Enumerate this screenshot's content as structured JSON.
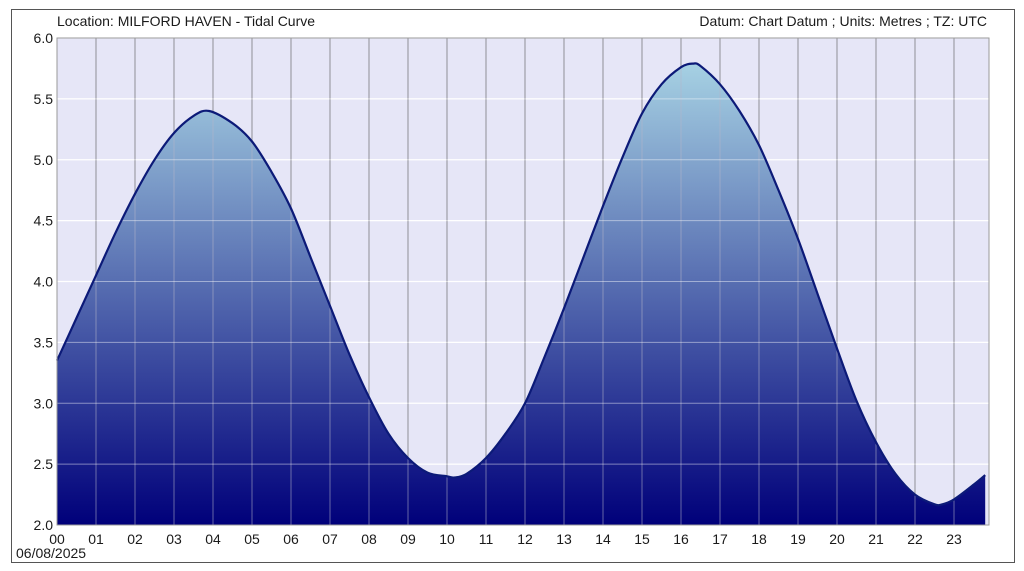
{
  "header": {
    "location": "Location: MILFORD HAVEN - Tidal Curve",
    "datum_info": "Datum: Chart Datum ; Units: Metres ; TZ: UTC"
  },
  "date": "06/08/2025",
  "colors": {
    "background": "#e6e6f7",
    "line": "#0c1a78",
    "fill_top": "#a6d1e3",
    "fill_bottom": "#00007a",
    "grid_vertical": "#8c8c8c",
    "grid_horizontal": "#ffffff"
  },
  "chart_data": {
    "type": "area",
    "title": "Location: MILFORD HAVEN - Tidal Curve",
    "xlabel": "",
    "ylabel": "",
    "xlim": [
      0,
      23.8
    ],
    "ylim": [
      2.0,
      6.0
    ],
    "grid": true,
    "x_ticks": [
      "00",
      "01",
      "02",
      "03",
      "04",
      "05",
      "06",
      "07",
      "08",
      "09",
      "10",
      "11",
      "12",
      "13",
      "14",
      "15",
      "16",
      "17",
      "18",
      "19",
      "20",
      "21",
      "22",
      "23"
    ],
    "y_ticks": [
      "2.0",
      "2.5",
      "3.0",
      "3.5",
      "4.0",
      "4.5",
      "5.0",
      "5.5",
      "6.0"
    ],
    "series": [
      {
        "x": [
          0,
          0.5,
          1,
          1.5,
          2,
          2.5,
          3,
          3.5,
          3.9,
          4.5,
          5,
          5.5,
          6,
          6.5,
          7,
          7.5,
          8,
          8.5,
          9,
          9.5,
          10,
          10.2,
          10.5,
          11,
          11.5,
          12,
          12.5,
          13,
          13.5,
          14,
          14.5,
          15,
          15.5,
          16,
          16.3,
          16.5,
          17,
          17.5,
          18,
          18.5,
          19,
          19.5,
          20,
          20.5,
          21,
          21.5,
          22,
          22.5,
          22.7,
          23,
          23.5,
          23.8
        ],
        "y": [
          3.35,
          3.7,
          4.05,
          4.4,
          4.72,
          5.0,
          5.22,
          5.36,
          5.4,
          5.3,
          5.15,
          4.9,
          4.6,
          4.2,
          3.8,
          3.4,
          3.05,
          2.75,
          2.55,
          2.43,
          2.4,
          2.39,
          2.42,
          2.55,
          2.75,
          3.0,
          3.38,
          3.78,
          4.2,
          4.62,
          5.02,
          5.38,
          5.62,
          5.76,
          5.79,
          5.77,
          5.62,
          5.4,
          5.12,
          4.75,
          4.35,
          3.9,
          3.45,
          3.02,
          2.68,
          2.42,
          2.25,
          2.17,
          2.17,
          2.21,
          2.33,
          2.41
        ]
      }
    ]
  }
}
